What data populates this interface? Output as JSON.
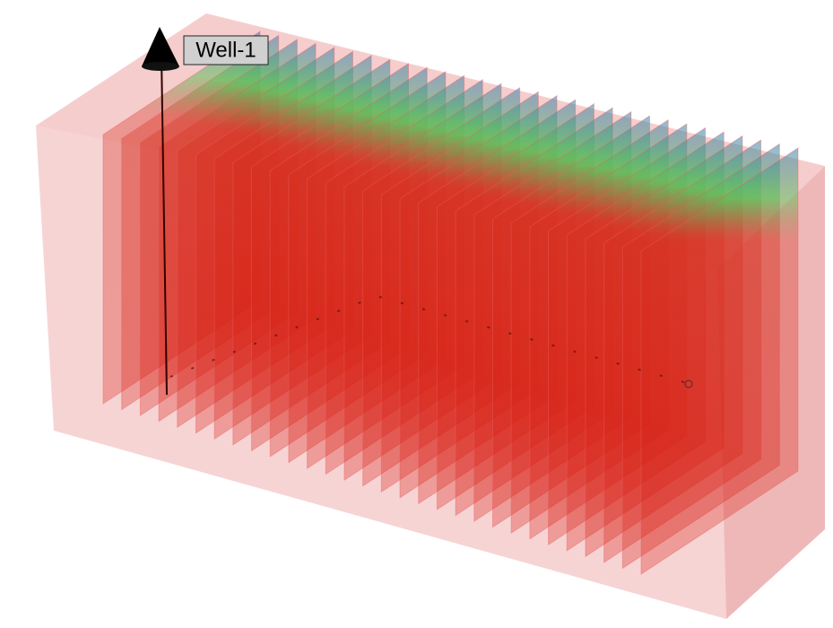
{
  "well": {
    "label": "Well-1"
  }
}
